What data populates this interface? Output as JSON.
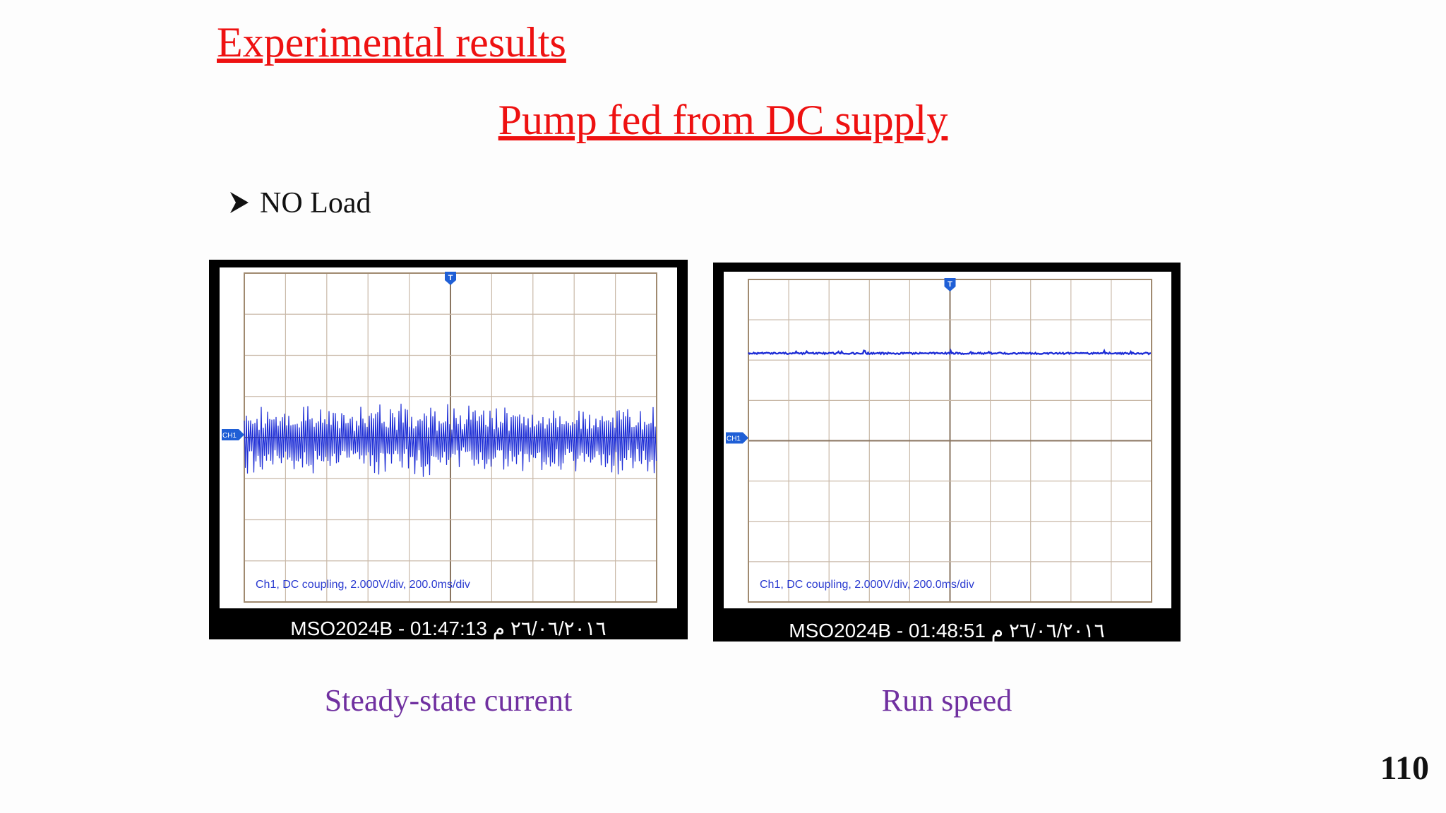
{
  "header": {
    "title": "Experimental results",
    "subtitle": "Pump fed from DC supply"
  },
  "bullet": "NO Load",
  "scopes": [
    {
      "info": "Ch1, DC coupling, 2.000V/div, 200.0ms/div",
      "footer": "MSO2024B - 01:47:13 ٢٦/٠٦/٢٠١٦ م",
      "caption": "Steady-state current",
      "trigger_marker": "T",
      "channel_marker": "CH1"
    },
    {
      "info": "Ch1, DC coupling, 2.000V/div, 200.0ms/div",
      "footer": "MSO2024B - 01:48:51 ٢٦/٠٦/٢٠١٦ م",
      "caption": "Run speed",
      "trigger_marker": "T",
      "channel_marker": "CH1"
    }
  ],
  "page_number": "110"
}
